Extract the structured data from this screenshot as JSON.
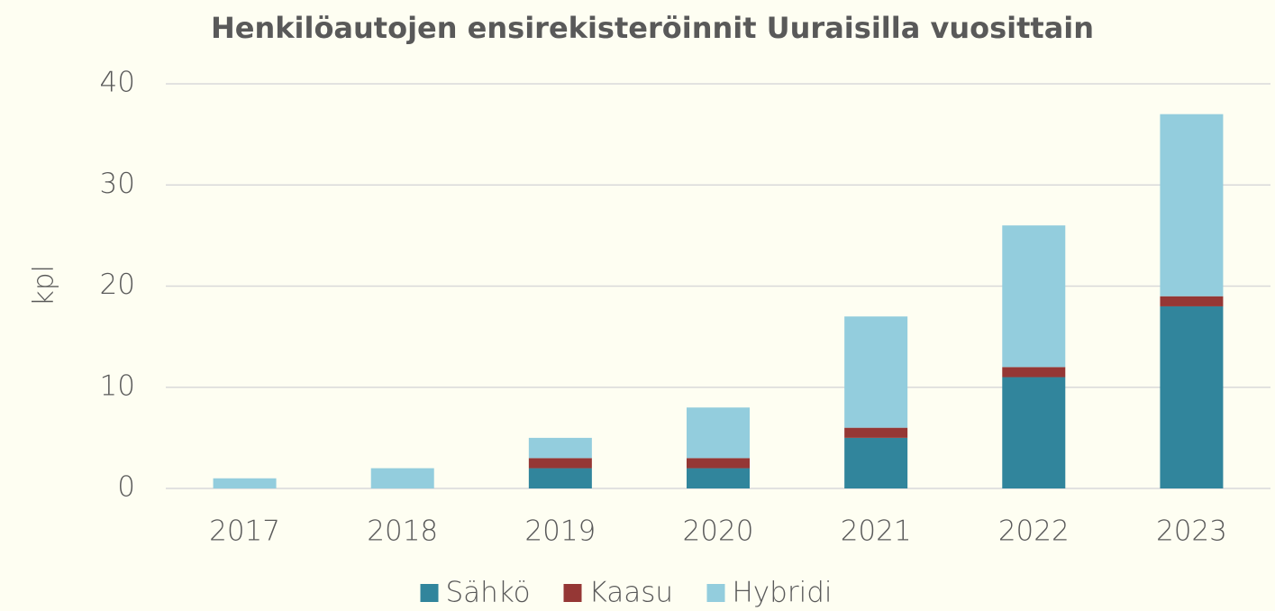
{
  "chart_data": {
    "type": "stacked_bar",
    "title": "Henkilöautojen ensirekisteröinnit Uuraisilla vuosittain",
    "y_label": "kpl",
    "categories": [
      "2017",
      "2018",
      "2019",
      "2020",
      "2021",
      "2022",
      "2023"
    ],
    "series": [
      {
        "name": "Sähkö",
        "color": "#31859c",
        "values": [
          0,
          0,
          2,
          2,
          5,
          11,
          18
        ]
      },
      {
        "name": "Kaasu",
        "color": "#953735",
        "values": [
          0,
          0,
          1,
          1,
          1,
          1,
          1
        ]
      },
      {
        "name": "Hybridi",
        "color": "#93cddd",
        "values": [
          1,
          2,
          2,
          5,
          11,
          14,
          18
        ]
      }
    ],
    "ylim": [
      0,
      40
    ],
    "yticks": [
      0,
      10,
      20,
      30,
      40
    ],
    "grid": true,
    "legend": "bottom"
  }
}
